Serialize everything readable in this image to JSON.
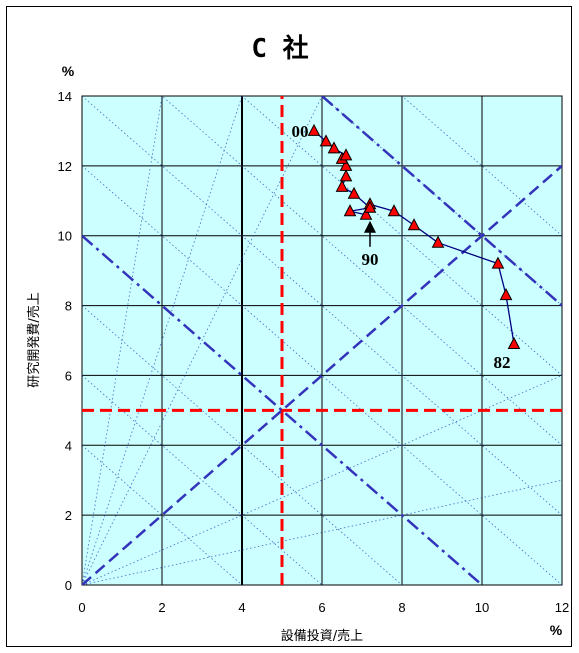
{
  "chart_data": {
    "type": "line",
    "title": "C 社",
    "xlabel": "設備投資/売上",
    "ylabel": "研究開発費/売上",
    "x_unit": "%",
    "y_unit": "%",
    "xlim": [
      0,
      12
    ],
    "ylim": [
      0,
      14
    ],
    "xticks": [
      "0",
      "2",
      "4",
      "6",
      "8",
      "10",
      "12"
    ],
    "yticks": [
      "0",
      "2",
      "4",
      "6",
      "8",
      "10",
      "12",
      "14"
    ],
    "grid": true,
    "background": "#ccffff",
    "series": [
      {
        "color": "#000080",
        "marker": "triangle",
        "marker_color": "#ff0000",
        "points": [
          {
            "x": 10.8,
            "y": 6.9
          },
          {
            "x": 10.6,
            "y": 8.3
          },
          {
            "x": 10.4,
            "y": 9.2
          },
          {
            "x": 8.9,
            "y": 9.8
          },
          {
            "x": 8.3,
            "y": 10.3
          },
          {
            "x": 7.8,
            "y": 10.7
          },
          {
            "x": 7.2,
            "y": 10.9
          },
          {
            "x": 7.1,
            "y": 10.6
          },
          {
            "x": 6.7,
            "y": 10.7
          },
          {
            "x": 7.2,
            "y": 10.8
          },
          {
            "x": 6.8,
            "y": 11.2
          },
          {
            "x": 6.5,
            "y": 11.4
          },
          {
            "x": 6.6,
            "y": 11.7
          },
          {
            "x": 6.6,
            "y": 12.0
          },
          {
            "x": 6.5,
            "y": 12.2
          },
          {
            "x": 6.6,
            "y": 12.3
          },
          {
            "x": 6.3,
            "y": 12.5
          },
          {
            "x": 6.1,
            "y": 12.7
          },
          {
            "x": 5.8,
            "y": 13.0
          }
        ]
      }
    ],
    "annotations": [
      {
        "text": "82",
        "x": 10.8,
        "y": 6.9
      },
      {
        "text": "90",
        "x": 7.2,
        "y": 10.6,
        "arrow": true
      },
      {
        "text": "00",
        "x": 5.8,
        "y": 13.0
      }
    ],
    "reference_lines": [
      {
        "style": "dashed",
        "color": "#ff0000",
        "orientation": "vertical",
        "x": 5
      },
      {
        "style": "dashed",
        "color": "#ff0000",
        "orientation": "horizontal",
        "y": 5
      },
      {
        "style": "dashed",
        "color": "#3333bb",
        "from": [
          0,
          0
        ],
        "to": [
          12,
          12
        ]
      },
      {
        "style": "dash-dot",
        "color": "#3333bb",
        "from": [
          0,
          10
        ],
        "to": [
          10,
          0
        ]
      },
      {
        "style": "dash-dot",
        "color": "#3333bb",
        "from": [
          6,
          14
        ],
        "to": [
          12,
          8
        ]
      }
    ]
  }
}
